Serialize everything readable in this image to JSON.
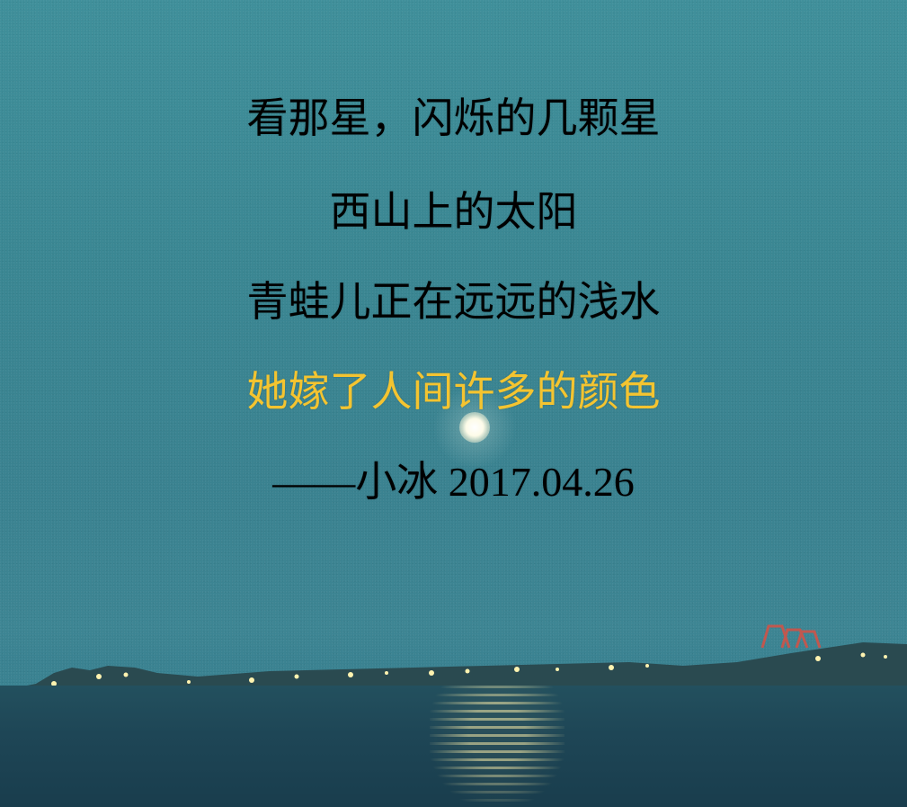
{
  "poem": {
    "lines": [
      "看那星，闪烁的几颗星",
      "西山上的太阳",
      "青蛙儿正在远远的浅水",
      "她嫁了人间许多的颜色",
      "——小冰 2017.04.26"
    ]
  },
  "colors": {
    "sky": "#3f8f9a",
    "water": "#1e4656",
    "text": "#ffffff",
    "highlight_text": "#f4c430"
  }
}
